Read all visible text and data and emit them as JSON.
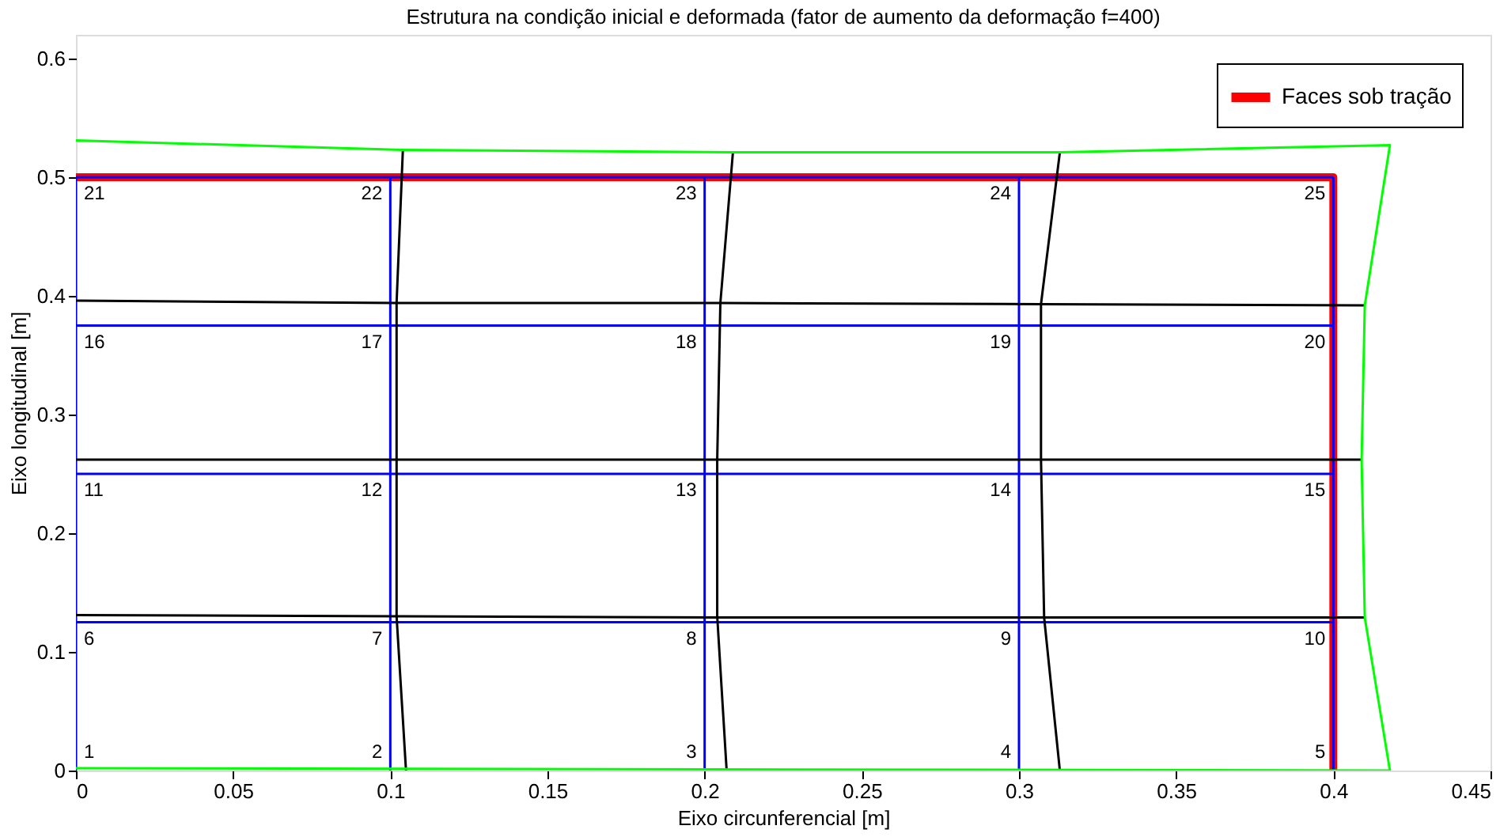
{
  "chart_data": {
    "type": "line",
    "title": "Estrutura na condição inicial e deformada (fator de aumento da deformação f=400)",
    "xlabel": "Eixo circunferencial [m]",
    "ylabel": "Eixo longitudinal [m]",
    "xlim": [
      0,
      0.45
    ],
    "xticks": [
      0,
      0.05,
      0.1,
      0.15,
      0.2,
      0.25,
      0.3,
      0.35,
      0.4,
      0.45
    ],
    "ylim": [
      0,
      0.62
    ],
    "yticks": [
      0,
      0.1,
      0.2,
      0.3,
      0.4,
      0.5,
      0.6
    ],
    "grid": false,
    "legend": "top right",
    "marker": "none",
    "line_style": "solid",
    "series": [
      {
        "name": "Faces sob tração",
        "color": "#ff0000",
        "x": [
          0,
          0.4,
          0.4
        ],
        "values": [
          0.5,
          0.5,
          0
        ]
      },
      {
        "color": "#0000ff",
        "x": [
          0,
          0.4
        ],
        "values": [
          0.125,
          0.125
        ]
      },
      {
        "color": "#0000ff",
        "x": [
          0,
          0.4
        ],
        "values": [
          0.25,
          0.25
        ]
      },
      {
        "color": "#0000ff",
        "x": [
          0,
          0.4
        ],
        "values": [
          0.375,
          0.375
        ]
      },
      {
        "color": "#0000ff",
        "x": [
          0,
          0.4
        ],
        "values": [
          0.5,
          0.5
        ]
      },
      {
        "color": "#0000ff",
        "x": [
          0,
          0
        ],
        "values": [
          0,
          0.5
        ]
      },
      {
        "color": "#0000ff",
        "x": [
          0.1,
          0.1
        ],
        "values": [
          0,
          0.5
        ]
      },
      {
        "color": "#0000ff",
        "x": [
          0.2,
          0.2
        ],
        "values": [
          0,
          0.5
        ]
      },
      {
        "color": "#0000ff",
        "x": [
          0.3,
          0.3
        ],
        "values": [
          0,
          0.5
        ]
      },
      {
        "color": "#0000ff",
        "x": [
          0.4,
          0.4
        ],
        "values": [
          0,
          0.5
        ]
      },
      {
        "color": "#000000",
        "x": [
          0,
          0.102,
          0.204,
          0.308,
          0.41
        ],
        "values": [
          0.131,
          0.13,
          0.129,
          0.129,
          0.129
        ]
      },
      {
        "color": "#000000",
        "x": [
          0,
          0.102,
          0.204,
          0.307,
          0.409
        ],
        "values": [
          0.262,
          0.262,
          0.262,
          0.262,
          0.262
        ]
      },
      {
        "color": "#000000",
        "x": [
          0,
          0.102,
          0.205,
          0.307,
          0.41
        ],
        "values": [
          0.396,
          0.394,
          0.394,
          0.393,
          0.392
        ]
      },
      {
        "color": "#000000",
        "x": [
          0.105,
          0.102,
          0.102,
          0.102,
          0.104
        ],
        "values": [
          0,
          0.13,
          0.262,
          0.394,
          0.523
        ]
      },
      {
        "color": "#000000",
        "x": [
          0.207,
          0.204,
          0.204,
          0.205,
          0.209
        ],
        "values": [
          0,
          0.13,
          0.262,
          0.394,
          0.521
        ]
      },
      {
        "color": "#000000",
        "x": [
          0.313,
          0.308,
          0.307,
          0.307,
          0.313
        ],
        "values": [
          0,
          0.129,
          0.262,
          0.393,
          0.521
        ]
      },
      {
        "color": "#00ff00",
        "x": [
          0,
          0.104,
          0.209,
          0.313,
          0.418,
          0.41,
          0.409,
          0.41,
          0.418,
          0
        ],
        "values": [
          0.531,
          0.523,
          0.521,
          0.521,
          0.527,
          0.392,
          0.262,
          0.129,
          0,
          0.002
        ]
      }
    ],
    "annotations": [
      {
        "text": "1",
        "x": 0,
        "y": 0
      },
      {
        "text": "2",
        "x": 0.1,
        "y": 0
      },
      {
        "text": "3",
        "x": 0.2,
        "y": 0
      },
      {
        "text": "4",
        "x": 0.3,
        "y": 0
      },
      {
        "text": "5",
        "x": 0.4,
        "y": 0
      },
      {
        "text": "6",
        "x": 0,
        "y": 0.125
      },
      {
        "text": "7",
        "x": 0.1,
        "y": 0.125
      },
      {
        "text": "8",
        "x": 0.2,
        "y": 0.125
      },
      {
        "text": "9",
        "x": 0.3,
        "y": 0.125
      },
      {
        "text": "10",
        "x": 0.4,
        "y": 0.125
      },
      {
        "text": "11",
        "x": 0,
        "y": 0.25
      },
      {
        "text": "12",
        "x": 0.1,
        "y": 0.25
      },
      {
        "text": "13",
        "x": 0.2,
        "y": 0.25
      },
      {
        "text": "14",
        "x": 0.3,
        "y": 0.25
      },
      {
        "text": "15",
        "x": 0.4,
        "y": 0.25
      },
      {
        "text": "16",
        "x": 0,
        "y": 0.375
      },
      {
        "text": "17",
        "x": 0.1,
        "y": 0.375
      },
      {
        "text": "18",
        "x": 0.2,
        "y": 0.375
      },
      {
        "text": "19",
        "x": 0.3,
        "y": 0.375
      },
      {
        "text": "20",
        "x": 0.4,
        "y": 0.375
      },
      {
        "text": "21",
        "x": 0,
        "y": 0.5
      },
      {
        "text": "22",
        "x": 0.1,
        "y": 0.5
      },
      {
        "text": "23",
        "x": 0.2,
        "y": 0.5
      },
      {
        "text": "24",
        "x": 0.3,
        "y": 0.5
      },
      {
        "text": "25",
        "x": 0.4,
        "y": 0.5
      }
    ]
  }
}
